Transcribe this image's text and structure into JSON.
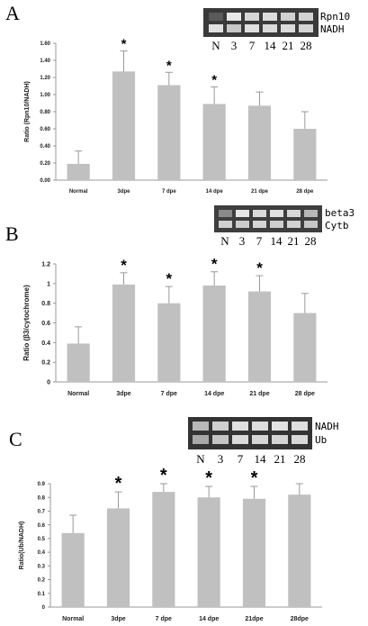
{
  "chart_data": [
    {
      "type": "bar",
      "panel_letter": "A",
      "categories": [
        "Normal",
        "3dpe",
        "7 dpe",
        "14 dpe",
        "21 dpe",
        "28 dpe"
      ],
      "values": [
        0.19,
        1.27,
        1.11,
        0.89,
        0.87,
        0.6
      ],
      "errors": [
        0.15,
        0.24,
        0.15,
        0.2,
        0.16,
        0.2
      ],
      "significance": [
        "",
        "*",
        "*",
        "*",
        "",
        ""
      ],
      "ylabel": "Ratio (Rpn10/NADH)",
      "ylim": [
        0,
        1.6
      ],
      "yticks": [
        0,
        0.2,
        0.4,
        0.6,
        0.8,
        1.0,
        1.2,
        1.4,
        1.6
      ],
      "ytick_labels": [
        "0.00",
        "0.20",
        "0.40",
        "0.60",
        "0.80",
        "1.00",
        "1.20",
        "1.40",
        "1.60"
      ],
      "bar_color": "#c0c0c0",
      "gel": {
        "band_labels": [
          "Rpn10",
          "NADH"
        ],
        "lane_labels": [
          "N",
          "3",
          "7",
          "14",
          "21",
          "28"
        ]
      }
    },
    {
      "type": "bar",
      "panel_letter": "B",
      "categories": [
        "Normal",
        "3dpe",
        "7 dpe",
        "14 dpe",
        "21 dpe",
        "28 dpe"
      ],
      "values": [
        0.39,
        0.99,
        0.8,
        0.98,
        0.92,
        0.7
      ],
      "errors": [
        0.17,
        0.12,
        0.17,
        0.14,
        0.16,
        0.2
      ],
      "significance": [
        "",
        "*",
        "*",
        "*",
        "*",
        ""
      ],
      "ylabel": "Ratio (β3/cytochrome)",
      "ylim": [
        0,
        1.2
      ],
      "yticks": [
        0,
        0.2,
        0.4,
        0.6,
        0.8,
        1.0,
        1.2
      ],
      "ytick_labels": [
        "0",
        "0.2",
        "0.4",
        "0.6",
        "0.8",
        "1",
        "1.2"
      ],
      "bar_color": "#c0c0c0",
      "gel": {
        "band_labels": [
          "beta3",
          "Cytb"
        ],
        "lane_labels": [
          "N",
          "3",
          "7",
          "14",
          "21",
          "28"
        ]
      }
    },
    {
      "type": "bar",
      "panel_letter": "C",
      "categories": [
        "Normal",
        "3dpe",
        "7 dpe",
        "14 dpe",
        "21dpe",
        "28dpe"
      ],
      "values": [
        0.54,
        0.72,
        0.84,
        0.8,
        0.79,
        0.82
      ],
      "errors": [
        0.13,
        0.12,
        0.06,
        0.08,
        0.09,
        0.08
      ],
      "significance": [
        "",
        "*",
        "*",
        "*",
        "*",
        ""
      ],
      "ylabel": "Ratio(Ub/NADH)",
      "ylim": [
        0,
        0.9
      ],
      "yticks": [
        0,
        0.1,
        0.2,
        0.3,
        0.4,
        0.5,
        0.6,
        0.7,
        0.8,
        0.9
      ],
      "ytick_labels": [
        "0",
        "0.1",
        "0.2",
        "0.3",
        "0.4",
        "0.5",
        "0.6",
        "0.7",
        "0.8",
        "0.9"
      ],
      "bar_color": "#c0c0c0",
      "gel": {
        "band_labels": [
          "NADH",
          "Ub"
        ],
        "lane_labels": [
          "N",
          "3",
          "7",
          "14",
          "21",
          "28"
        ]
      }
    }
  ]
}
